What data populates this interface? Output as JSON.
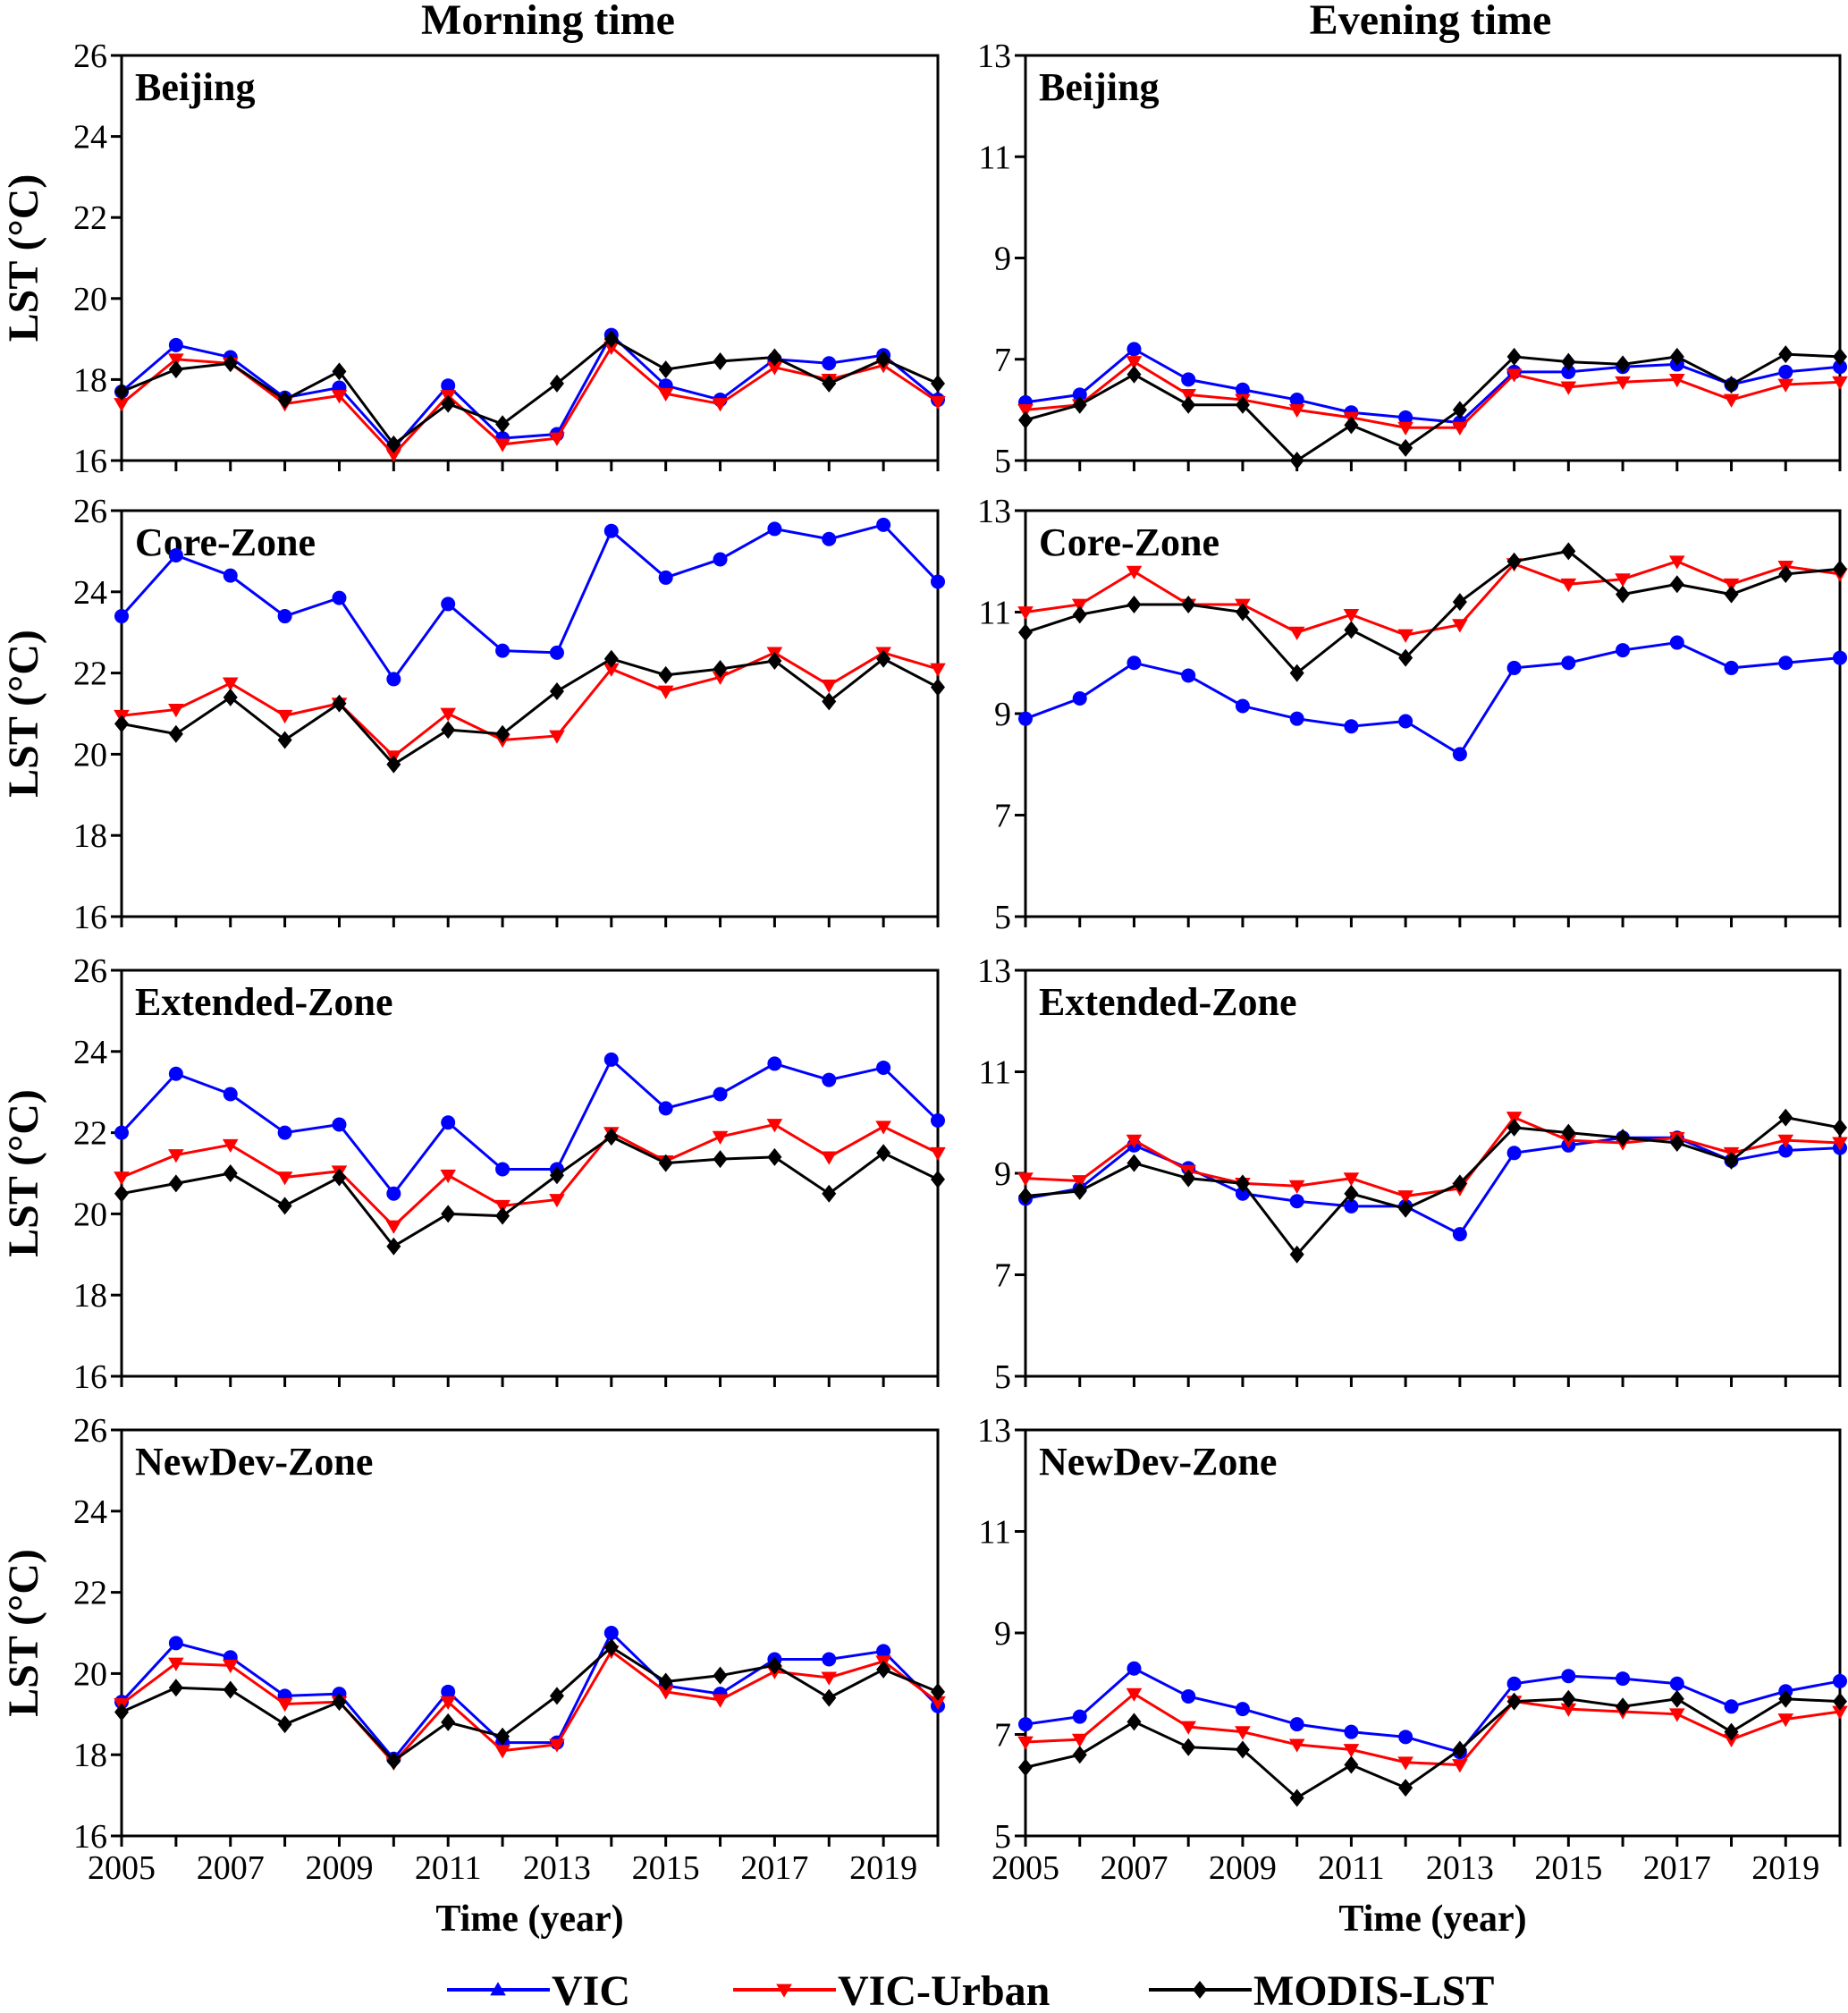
{
  "column_titles": [
    "Morning time",
    "Evening time"
  ],
  "legend": [
    {
      "name": "VIC",
      "color": "#0000ff",
      "marker": "triangle-up"
    },
    {
      "name": "VIC-Urban",
      "color": "#ff0000",
      "marker": "triangle-down"
    },
    {
      "name": "MODIS-LST",
      "color": "#000000",
      "marker": "diamond"
    }
  ],
  "chart_data": [
    {
      "type": "line",
      "panel_label": "Beijing",
      "column": "Morning time",
      "ylabel": "LST (°C)",
      "xlabel": "",
      "ylim": [
        16,
        26
      ],
      "yticks": [
        16,
        18,
        20,
        22,
        24,
        26
      ],
      "x": [
        2005,
        2006,
        2007,
        2008,
        2009,
        2010,
        2011,
        2012,
        2013,
        2014,
        2015,
        2016,
        2017,
        2018,
        2019,
        2020
      ],
      "series": [
        {
          "name": "VIC",
          "values": [
            17.7,
            18.85,
            18.55,
            17.55,
            17.8,
            16.3,
            17.85,
            16.55,
            16.65,
            19.1,
            17.85,
            17.5,
            18.5,
            18.4,
            18.6,
            17.5
          ]
        },
        {
          "name": "VIC-Urban",
          "values": [
            17.4,
            18.5,
            18.4,
            17.4,
            17.6,
            16.15,
            17.6,
            16.4,
            16.55,
            18.8,
            17.65,
            17.4,
            18.3,
            18.0,
            18.35,
            17.45
          ]
        },
        {
          "name": "MODIS-LST",
          "values": [
            17.7,
            18.25,
            18.4,
            17.5,
            18.2,
            16.4,
            17.4,
            16.9,
            17.9,
            19.0,
            18.25,
            18.45,
            18.55,
            17.9,
            18.5,
            17.9
          ]
        }
      ]
    },
    {
      "type": "line",
      "panel_label": "Beijing",
      "column": "Evening time",
      "ylabel": "",
      "xlabel": "",
      "ylim": [
        5,
        13
      ],
      "yticks": [
        5,
        7,
        9,
        11,
        13
      ],
      "x": [
        2005,
        2006,
        2007,
        2008,
        2009,
        2010,
        2011,
        2012,
        2013,
        2014,
        2015,
        2016,
        2017,
        2018,
        2019,
        2020
      ],
      "series": [
        {
          "name": "VIC",
          "values": [
            6.15,
            6.3,
            7.2,
            6.6,
            6.4,
            6.2,
            5.95,
            5.85,
            5.75,
            6.75,
            6.75,
            6.85,
            6.9,
            6.5,
            6.75,
            6.85
          ]
        },
        {
          "name": "VIC-Urban",
          "values": [
            6.0,
            6.1,
            6.95,
            6.3,
            6.2,
            6.0,
            5.85,
            5.65,
            5.65,
            6.7,
            6.45,
            6.55,
            6.6,
            6.2,
            6.5,
            6.55
          ]
        },
        {
          "name": "MODIS-LST",
          "values": [
            5.8,
            6.1,
            6.7,
            6.1,
            6.1,
            5.0,
            5.7,
            5.25,
            6.0,
            7.05,
            6.95,
            6.9,
            7.05,
            6.5,
            7.1,
            7.05
          ]
        }
      ]
    },
    {
      "type": "line",
      "panel_label": "Core-Zone",
      "column": "Morning time",
      "ylabel": "LST (°C)",
      "xlabel": "",
      "ylim": [
        16,
        26
      ],
      "yticks": [
        16,
        18,
        20,
        22,
        24,
        26
      ],
      "x": [
        2005,
        2006,
        2007,
        2008,
        2009,
        2010,
        2011,
        2012,
        2013,
        2014,
        2015,
        2016,
        2017,
        2018,
        2019,
        2020
      ],
      "series": [
        {
          "name": "VIC",
          "values": [
            23.4,
            24.9,
            24.4,
            23.4,
            23.85,
            21.85,
            23.7,
            22.55,
            22.5,
            25.5,
            24.35,
            24.8,
            25.55,
            25.3,
            25.65,
            24.25
          ]
        },
        {
          "name": "VIC-Urban",
          "values": [
            20.95,
            21.1,
            21.75,
            20.95,
            21.25,
            19.95,
            21.0,
            20.35,
            20.45,
            22.1,
            21.55,
            21.9,
            22.5,
            21.7,
            22.5,
            22.1
          ]
        },
        {
          "name": "MODIS-LST",
          "values": [
            20.75,
            20.5,
            21.4,
            20.35,
            21.25,
            19.75,
            20.6,
            20.5,
            21.55,
            22.35,
            21.95,
            22.1,
            22.3,
            21.3,
            22.35,
            21.65
          ]
        }
      ]
    },
    {
      "type": "line",
      "panel_label": "Core-Zone",
      "column": "Evening time",
      "ylabel": "",
      "xlabel": "",
      "ylim": [
        5,
        13
      ],
      "yticks": [
        5,
        7,
        9,
        11,
        13
      ],
      "x": [
        2005,
        2006,
        2007,
        2008,
        2009,
        2010,
        2011,
        2012,
        2013,
        2014,
        2015,
        2016,
        2017,
        2018,
        2019,
        2020
      ],
      "series": [
        {
          "name": "VIC",
          "values": [
            8.9,
            9.3,
            10.0,
            9.75,
            9.15,
            8.9,
            8.75,
            8.85,
            8.2,
            9.9,
            10.0,
            10.25,
            10.4,
            9.9,
            10.0,
            10.1
          ]
        },
        {
          "name": "VIC-Urban",
          "values": [
            11.0,
            11.15,
            11.8,
            11.15,
            11.15,
            10.6,
            10.95,
            10.55,
            10.75,
            11.95,
            11.55,
            11.65,
            12.0,
            11.55,
            11.9,
            11.75
          ]
        },
        {
          "name": "MODIS-LST",
          "values": [
            10.6,
            10.95,
            11.15,
            11.15,
            11.0,
            9.8,
            10.65,
            10.1,
            11.2,
            12.0,
            12.2,
            11.35,
            11.55,
            11.35,
            11.75,
            11.85
          ]
        }
      ]
    },
    {
      "type": "line",
      "panel_label": "Extended-Zone",
      "column": "Morning time",
      "ylabel": "LST (°C)",
      "xlabel": "",
      "ylim": [
        16,
        26
      ],
      "yticks": [
        16,
        18,
        20,
        22,
        24,
        26
      ],
      "x": [
        2005,
        2006,
        2007,
        2008,
        2009,
        2010,
        2011,
        2012,
        2013,
        2014,
        2015,
        2016,
        2017,
        2018,
        2019,
        2020
      ],
      "series": [
        {
          "name": "VIC",
          "values": [
            22.0,
            23.45,
            22.95,
            22.0,
            22.2,
            20.5,
            22.25,
            21.1,
            21.1,
            23.8,
            22.6,
            22.95,
            23.7,
            23.3,
            23.6,
            22.3
          ]
        },
        {
          "name": "VIC-Urban",
          "values": [
            20.9,
            21.45,
            21.7,
            20.9,
            21.05,
            19.7,
            20.95,
            20.2,
            20.35,
            22.0,
            21.3,
            21.9,
            22.2,
            21.4,
            22.15,
            21.5
          ]
        },
        {
          "name": "MODIS-LST",
          "values": [
            20.5,
            20.75,
            21.0,
            20.2,
            20.9,
            19.2,
            20.0,
            19.95,
            20.95,
            21.9,
            21.25,
            21.35,
            21.4,
            20.5,
            21.5,
            20.85
          ]
        }
      ]
    },
    {
      "type": "line",
      "panel_label": "Extended-Zone",
      "column": "Evening time",
      "ylabel": "",
      "xlabel": "",
      "ylim": [
        5,
        13
      ],
      "yticks": [
        5,
        7,
        9,
        11,
        13
      ],
      "x": [
        2005,
        2006,
        2007,
        2008,
        2009,
        2010,
        2011,
        2012,
        2013,
        2014,
        2015,
        2016,
        2017,
        2018,
        2019,
        2020
      ],
      "series": [
        {
          "name": "VIC",
          "values": [
            8.5,
            8.7,
            9.55,
            9.1,
            8.6,
            8.45,
            8.35,
            8.35,
            7.8,
            9.4,
            9.55,
            9.7,
            9.7,
            9.25,
            9.45,
            9.5
          ]
        },
        {
          "name": "VIC-Urban",
          "values": [
            8.9,
            8.85,
            9.65,
            9.05,
            8.8,
            8.75,
            8.9,
            8.55,
            8.7,
            10.1,
            9.65,
            9.6,
            9.7,
            9.4,
            9.65,
            9.6
          ]
        },
        {
          "name": "MODIS-LST",
          "values": [
            8.55,
            8.65,
            9.2,
            8.9,
            8.8,
            7.4,
            8.6,
            8.3,
            8.8,
            9.9,
            9.8,
            9.7,
            9.6,
            9.25,
            10.1,
            9.9
          ]
        }
      ]
    },
    {
      "type": "line",
      "panel_label": "NewDev-Zone",
      "column": "Morning time",
      "ylabel": "LST (°C)",
      "xlabel": "Time (year)",
      "ylim": [
        16,
        26
      ],
      "yticks": [
        16,
        18,
        20,
        22,
        24,
        26
      ],
      "xticks": [
        2005,
        2007,
        2009,
        2011,
        2013,
        2015,
        2017,
        2019
      ],
      "x": [
        2005,
        2006,
        2007,
        2008,
        2009,
        2010,
        2011,
        2012,
        2013,
        2014,
        2015,
        2016,
        2017,
        2018,
        2019,
        2020
      ],
      "series": [
        {
          "name": "VIC",
          "values": [
            19.3,
            20.75,
            20.4,
            19.45,
            19.5,
            17.9,
            19.55,
            18.3,
            18.3,
            21.0,
            19.7,
            19.5,
            20.35,
            20.35,
            20.55,
            19.2
          ]
        },
        {
          "name": "VIC-Urban",
          "values": [
            19.25,
            20.25,
            20.2,
            19.25,
            19.3,
            17.8,
            19.3,
            18.1,
            18.25,
            20.55,
            19.55,
            19.35,
            20.05,
            19.9,
            20.3,
            19.3
          ]
        },
        {
          "name": "MODIS-LST",
          "values": [
            19.05,
            19.65,
            19.6,
            18.75,
            19.3,
            17.85,
            18.8,
            18.45,
            19.45,
            20.65,
            19.8,
            19.95,
            20.2,
            19.4,
            20.1,
            19.55
          ]
        }
      ]
    },
    {
      "type": "line",
      "panel_label": "NewDev-Zone",
      "column": "Evening time",
      "ylabel": "",
      "xlabel": "Time (year)",
      "ylim": [
        5,
        13
      ],
      "yticks": [
        5,
        7,
        9,
        11,
        13
      ],
      "xticks": [
        2005,
        2007,
        2009,
        2011,
        2013,
        2015,
        2017,
        2019
      ],
      "x": [
        2005,
        2006,
        2007,
        2008,
        2009,
        2010,
        2011,
        2012,
        2013,
        2014,
        2015,
        2016,
        2017,
        2018,
        2019,
        2020
      ],
      "series": [
        {
          "name": "VIC",
          "values": [
            7.2,
            7.35,
            8.3,
            7.75,
            7.5,
            7.2,
            7.05,
            6.95,
            6.65,
            8.0,
            8.15,
            8.1,
            8.0,
            7.55,
            7.85,
            8.05
          ]
        },
        {
          "name": "VIC-Urban",
          "values": [
            6.85,
            6.9,
            7.8,
            7.15,
            7.05,
            6.8,
            6.7,
            6.45,
            6.4,
            7.65,
            7.5,
            7.45,
            7.4,
            6.9,
            7.3,
            7.45
          ]
        },
        {
          "name": "MODIS-LST",
          "values": [
            6.35,
            6.6,
            7.25,
            6.75,
            6.7,
            5.75,
            6.4,
            5.95,
            6.7,
            7.65,
            7.7,
            7.55,
            7.7,
            7.05,
            7.7,
            7.65
          ]
        }
      ]
    }
  ]
}
